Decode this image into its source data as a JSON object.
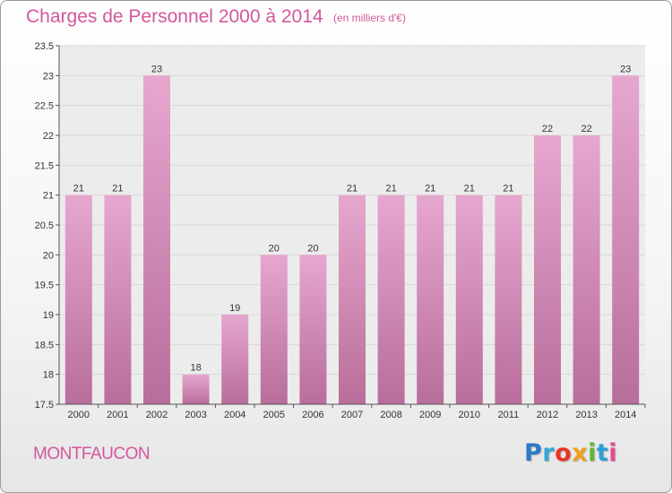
{
  "header": {
    "title": "Charges de Personnel 2000 à 2014",
    "subtitle": "(en milliers d'€)"
  },
  "footer": {
    "town": "MONTFAUCON",
    "logo": {
      "p": "P",
      "r": "r",
      "o": "o",
      "x": "x",
      "i1": "i",
      "t": "t",
      "i2": "i"
    }
  },
  "colors": {
    "bar_light": "#e6a7cf",
    "bar_dark": "#b86e9a",
    "accent": "#d2579b"
  },
  "chart_data": {
    "type": "bar",
    "categories": [
      "2000",
      "2001",
      "2002",
      "2003",
      "2004",
      "2005",
      "2006",
      "2007",
      "2008",
      "2009",
      "2010",
      "2011",
      "2012",
      "2013",
      "2014"
    ],
    "values": [
      21,
      21,
      23,
      18,
      19,
      20,
      20,
      21,
      21,
      21,
      21,
      21,
      22,
      22,
      23
    ],
    "data_labels": [
      "21",
      "21",
      "23",
      "18",
      "19",
      "20",
      "20",
      "21",
      "21",
      "21",
      "21",
      "21",
      "22",
      "22",
      "23"
    ],
    "title": "Charges de Personnel 2000 à 2014",
    "subtitle": "(en milliers d'€)",
    "ylim": [
      17.5,
      23.5
    ],
    "yticks": [
      17.5,
      18,
      18.5,
      19,
      19.5,
      20,
      20.5,
      21,
      21.5,
      22,
      22.5,
      23,
      23.5
    ],
    "ytick_labels": [
      "17.5",
      "18",
      "18.5",
      "19",
      "19.5",
      "20",
      "20.5",
      "21",
      "21.5",
      "22",
      "22.5",
      "23",
      "23.5"
    ],
    "grid": true
  }
}
